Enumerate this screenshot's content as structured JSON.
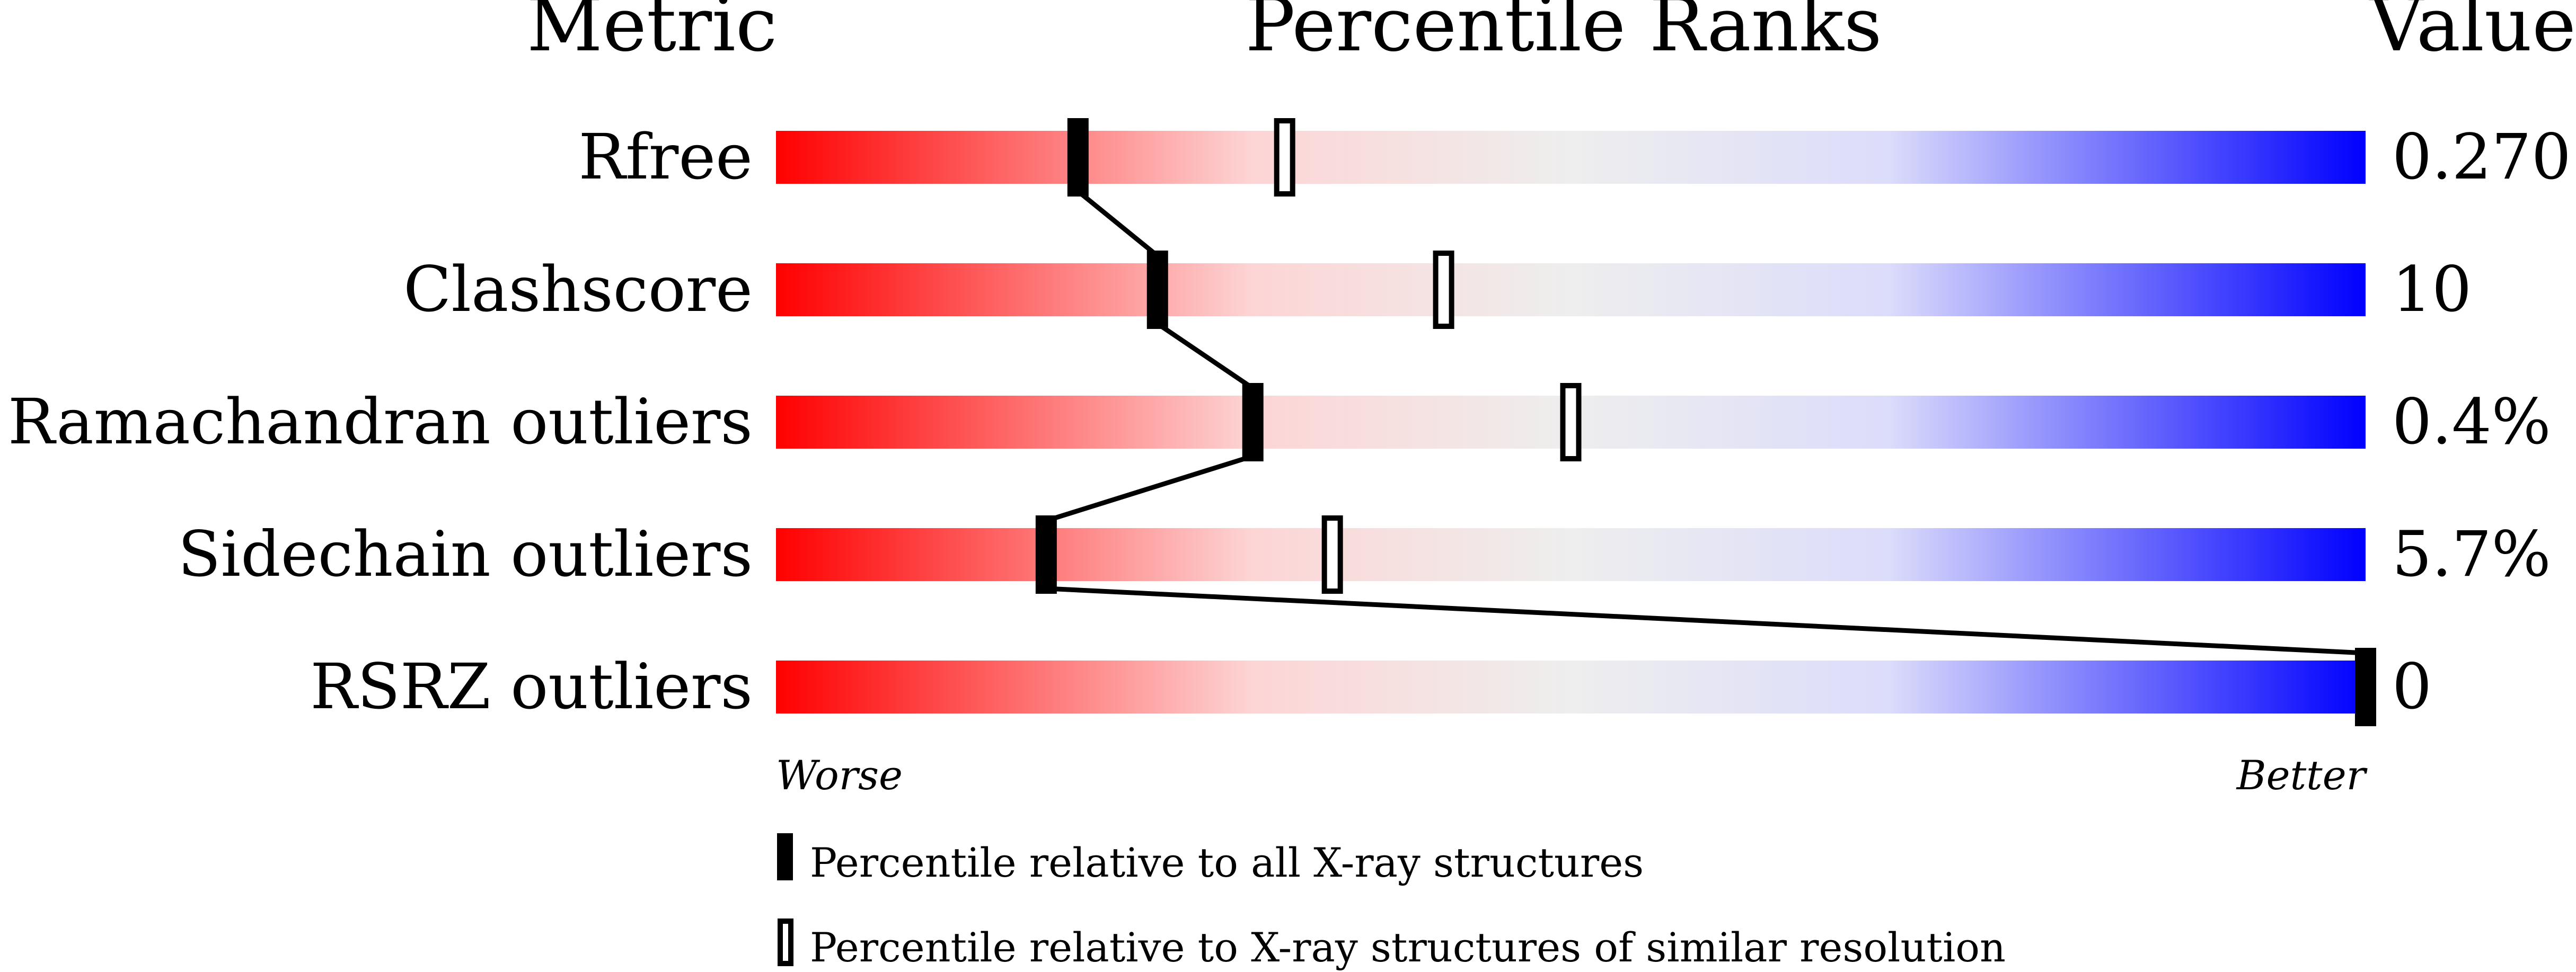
{
  "chart_data": {
    "type": "bar",
    "headers": {
      "metric": "Metric",
      "percentile": "Percentile Ranks",
      "value": "Value"
    },
    "xlim": [
      0,
      100
    ],
    "axis_labels": {
      "left": "Worse",
      "right": "Better"
    },
    "rows": [
      {
        "metric": "Rfree",
        "value": "0.270",
        "percentile_all": 19,
        "percentile_similar": 32
      },
      {
        "metric": "Clashscore",
        "value": "10",
        "percentile_all": 24,
        "percentile_similar": 42
      },
      {
        "metric": "Ramachandran outliers",
        "value": "0.4%",
        "percentile_all": 30,
        "percentile_similar": 50
      },
      {
        "metric": "Sidechain outliers",
        "value": "5.7%",
        "percentile_all": 17,
        "percentile_similar": 35
      },
      {
        "metric": "RSRZ outliers",
        "value": "0",
        "percentile_all": 100,
        "percentile_similar": null
      }
    ],
    "legend": [
      {
        "marker": "filled",
        "label": "Percentile relative to all X-ray structures"
      },
      {
        "marker": "open",
        "label": "Percentile relative to X-ray structures of similar resolution"
      }
    ],
    "colors": {
      "worse": "#ff0000",
      "middle": "#eeeeee",
      "better": "#0000ff"
    }
  }
}
